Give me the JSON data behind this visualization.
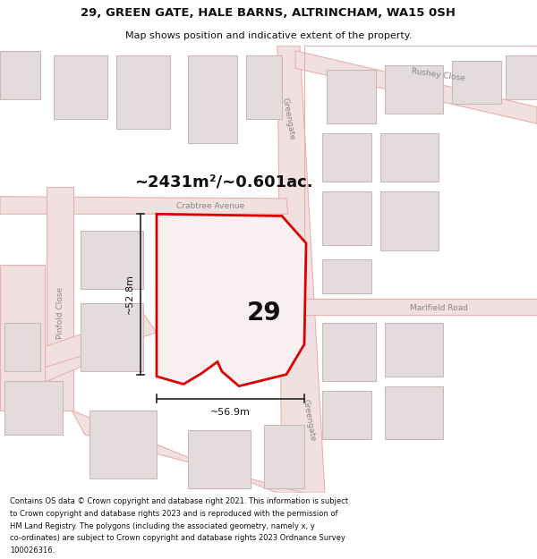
{
  "title_line1": "29, GREEN GATE, HALE BARNS, ALTRINCHAM, WA15 0SH",
  "title_line2": "Map shows position and indicative extent of the property.",
  "area_label": "~2431m²/~0.601ac.",
  "number_label": "29",
  "dim_height": "~52.8m",
  "dim_width": "~56.9m",
  "footer_lines": [
    "Contains OS data © Crown copyright and database right 2021. This information is subject",
    "to Crown copyright and database rights 2023 and is reproduced with the permission of",
    "HM Land Registry. The polygons (including the associated geometry, namely x, y",
    "co-ordinates) are subject to Crown copyright and database rights 2023 Ordnance Survey",
    "100026316."
  ],
  "bg_color": "#f7f4f4",
  "road_stroke": "#e8b0b0",
  "road_fill": "#f0e0e0",
  "bld_stroke": "#c8b8b8",
  "bld_fill": "#e4dcdc",
  "plot_color": "#dd0000",
  "dim_color": "#222222",
  "text_color": "#111111",
  "label_color": "#888888",
  "figsize": [
    6.0,
    6.25
  ],
  "dpi": 100
}
